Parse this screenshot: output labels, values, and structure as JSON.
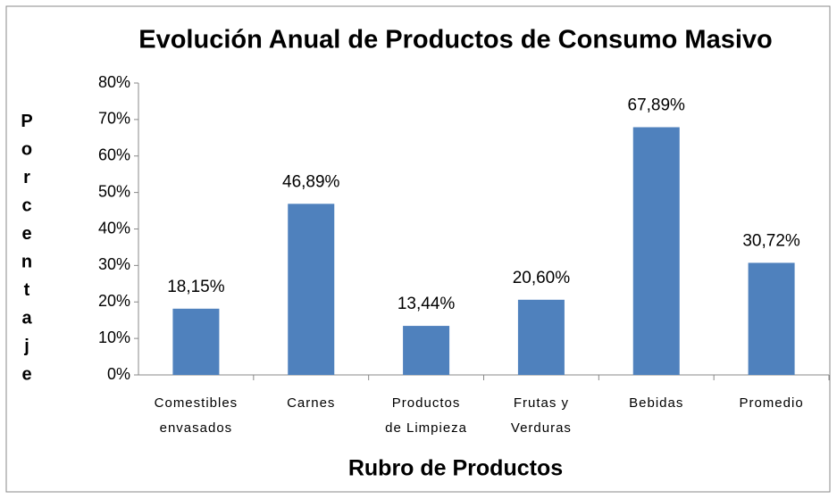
{
  "chart_data": {
    "type": "bar",
    "title": "Evolución Anual de Productos de Consumo Masivo",
    "x_label": "Rubro de Productos",
    "y_label": "Porcentaje",
    "categories": [
      "Comestibles\nenvasados",
      "Carnes",
      "Productos\nde Limpieza",
      "Frutas y\nVerduras",
      "Bebidas",
      "Promedio"
    ],
    "values": [
      18.15,
      46.89,
      13.44,
      20.6,
      67.89,
      30.72
    ],
    "value_labels": [
      "18,15%",
      "46,89%",
      "13,44%",
      "20,60%",
      "67,89%",
      "30,72%"
    ],
    "color": "#4f81bd",
    "ylim": [
      0,
      80
    ],
    "yticks": [
      {
        "value": 0,
        "label": "0%"
      },
      {
        "value": 10,
        "label": "10%"
      },
      {
        "value": 20,
        "label": "20%"
      },
      {
        "value": 30,
        "label": "30%"
      },
      {
        "value": 40,
        "label": "40%"
      },
      {
        "value": 50,
        "label": "50%"
      },
      {
        "value": 60,
        "label": "60%"
      },
      {
        "value": 70,
        "label": "70%"
      },
      {
        "value": 80,
        "label": "80%"
      }
    ]
  }
}
